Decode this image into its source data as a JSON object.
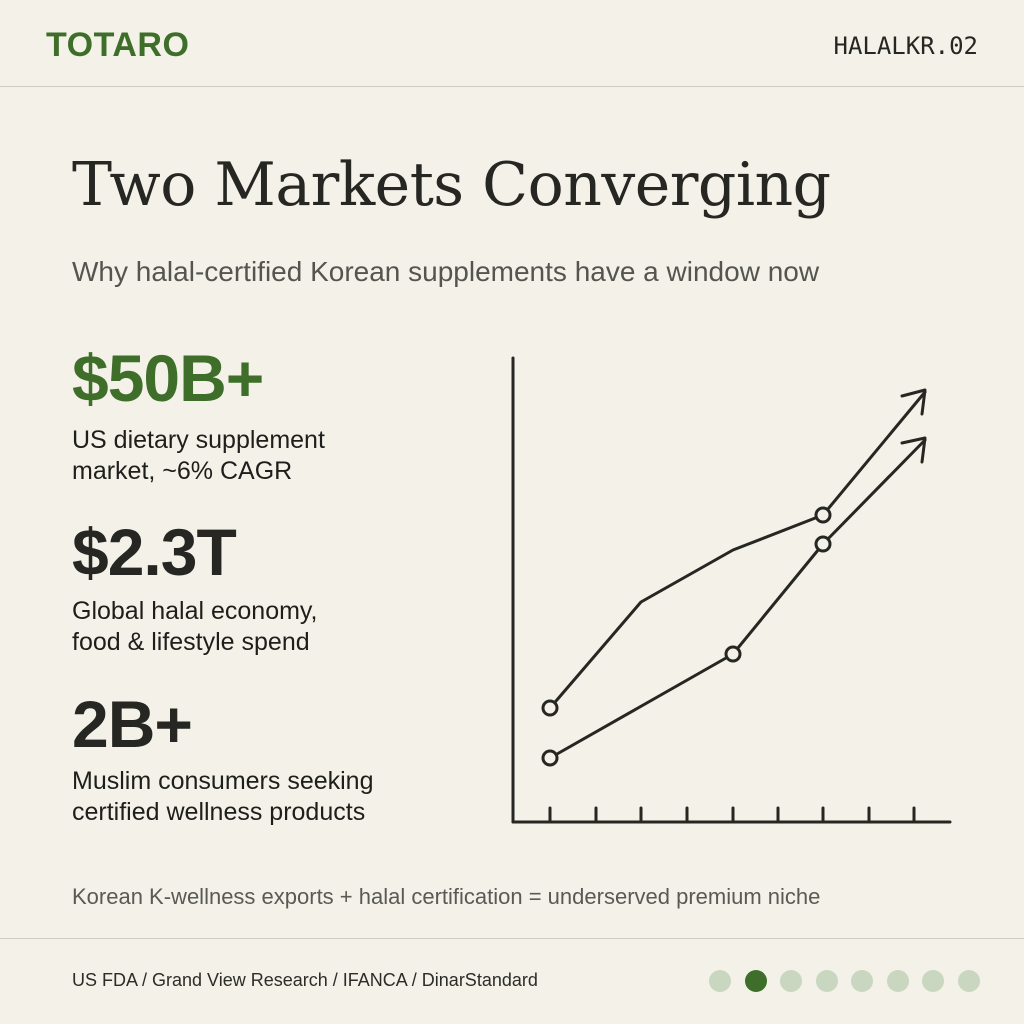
{
  "header": {
    "brand": "TOTARO",
    "code": "HALALKR.02"
  },
  "title": "Two Markets Converging",
  "subtitle": "Why halal-certified Korean supplements have a window now",
  "stats": [
    {
      "value": "$50B+",
      "description": [
        "US dietary supplement",
        "market, ~6% CAGR"
      ]
    },
    {
      "value": "$2.3T",
      "description": [
        "Global halal economy,",
        "food & lifestyle spend"
      ]
    },
    {
      "value": "2B+",
      "description": [
        "Muslim consumers seeking",
        "certified wellness products"
      ]
    }
  ],
  "note": "Korean K-wellness exports + halal certification = underserved premium niche",
  "sources": "US FDA / Grand View Research / IFANCA / DinarStandard"
}
